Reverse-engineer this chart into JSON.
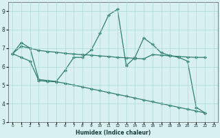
{
  "x": [
    0,
    1,
    2,
    3,
    4,
    5,
    6,
    7,
    8,
    9,
    10,
    11,
    12,
    13,
    14,
    15,
    16,
    17,
    18,
    19,
    20,
    21,
    22,
    23
  ],
  "line1": [
    6.7,
    7.3,
    7.0,
    5.3,
    5.25,
    5.2,
    5.8,
    6.5,
    6.5,
    6.9,
    7.8,
    8.8,
    9.1,
    6.05,
    6.5,
    7.55,
    7.2,
    6.75,
    6.6,
    6.5,
    6.3,
    3.8,
    3.5,
    null
  ],
  "line2": [
    6.7,
    7.1,
    7.0,
    6.88,
    6.82,
    6.78,
    6.72,
    6.68,
    6.65,
    6.62,
    6.58,
    6.55,
    6.5,
    6.48,
    6.45,
    6.42,
    6.65,
    6.62,
    6.58,
    6.55,
    6.52,
    6.5,
    6.5,
    null
  ],
  "line3": [
    6.7,
    6.5,
    6.3,
    5.25,
    5.2,
    5.18,
    5.1,
    5.0,
    4.9,
    4.8,
    4.7,
    4.6,
    4.5,
    4.4,
    4.3,
    4.2,
    4.1,
    4.0,
    3.9,
    3.8,
    3.7,
    3.6,
    3.5,
    null
  ],
  "line_color": "#2e7d6e",
  "bg_color": "#d8f0ef",
  "grid_color": "#aad8d3",
  "xlabel": "Humidex (Indice chaleur)",
  "xlim": [
    -0.5,
    23.5
  ],
  "ylim": [
    3,
    9.5
  ],
  "yticks": [
    3,
    4,
    5,
    6,
    7,
    8,
    9
  ],
  "xtick_labels": [
    "0",
    "1",
    "2",
    "3",
    "4",
    "5",
    "6",
    "7",
    "8",
    "9",
    "10",
    "11",
    "12",
    "13",
    "14",
    "15",
    "16",
    "17",
    "18",
    "19",
    "20",
    "21",
    "22",
    "23"
  ],
  "xticks": [
    0,
    1,
    2,
    3,
    4,
    5,
    6,
    7,
    8,
    9,
    10,
    11,
    12,
    13,
    14,
    15,
    16,
    17,
    18,
    19,
    20,
    21,
    22,
    23
  ]
}
